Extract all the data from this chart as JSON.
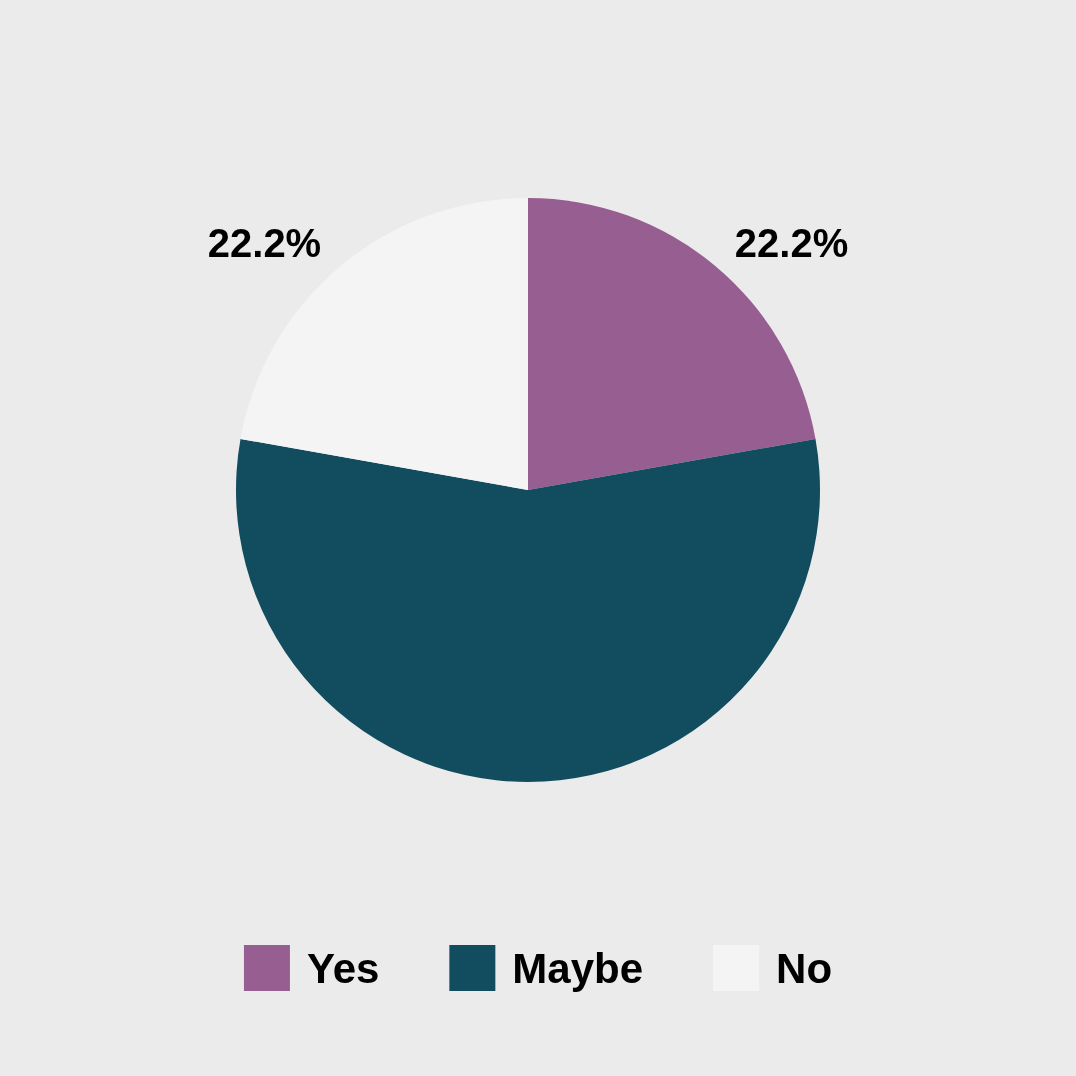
{
  "chart_data": {
    "type": "pie",
    "categories": [
      "Yes",
      "Maybe",
      "No"
    ],
    "values": [
      22.2,
      55.6,
      22.2
    ],
    "value_labels": [
      "22.2%",
      null,
      "22.2%"
    ],
    "colors": [
      "#975e91",
      "#124c5f",
      "#f4f4f4"
    ],
    "legend": "bottom"
  }
}
